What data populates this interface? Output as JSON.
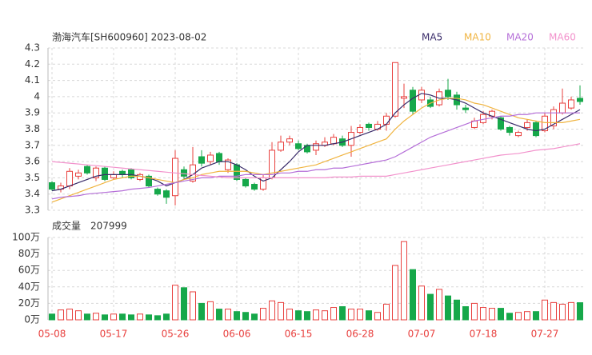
{
  "chart_data": {
    "type": "candlestick",
    "title": "渤海汽车[SH600960] 2023-08-02",
    "categories": [
      "05-08",
      null,
      null,
      null,
      null,
      null,
      null,
      "05-17",
      null,
      null,
      null,
      null,
      null,
      null,
      "05-26",
      null,
      null,
      null,
      null,
      null,
      null,
      "06-06",
      null,
      null,
      null,
      null,
      null,
      null,
      "06-15",
      null,
      null,
      null,
      null,
      null,
      null,
      "06-28",
      null,
      null,
      null,
      null,
      null,
      null,
      "07-07",
      null,
      null,
      null,
      null,
      null,
      null,
      "07-18",
      null,
      null,
      null,
      null,
      null,
      null,
      "07-27",
      null,
      null,
      null,
      null
    ],
    "open": [
      3.47,
      3.43,
      3.45,
      3.51,
      3.57,
      3.5,
      3.56,
      3.5,
      3.54,
      3.55,
      3.49,
      3.51,
      3.43,
      3.42,
      3.39,
      3.55,
      3.48,
      3.63,
      3.6,
      3.65,
      3.55,
      3.58,
      3.49,
      3.46,
      3.43,
      3.5,
      3.67,
      3.72,
      3.71,
      3.7,
      3.67,
      3.7,
      3.71,
      3.74,
      3.7,
      3.78,
      3.83,
      3.8,
      3.83,
      3.88,
      3.99,
      4.04,
      3.98,
      3.98,
      3.95,
      4.04,
      4.01,
      3.93,
      3.81,
      3.84,
      3.88,
      3.87,
      3.81,
      3.76,
      3.81,
      3.84,
      3.79,
      3.82,
      3.9,
      3.93,
      3.99
    ],
    "high": [
      3.48,
      3.47,
      3.56,
      3.55,
      3.58,
      3.57,
      3.57,
      3.54,
      3.55,
      3.56,
      3.53,
      3.52,
      3.44,
      3.43,
      3.67,
      3.57,
      3.69,
      3.67,
      3.66,
      3.66,
      3.62,
      3.59,
      3.5,
      3.47,
      3.52,
      3.72,
      3.76,
      3.76,
      3.73,
      3.71,
      3.73,
      3.75,
      3.77,
      3.76,
      3.82,
      3.83,
      3.84,
      3.85,
      3.9,
      4.21,
      4.08,
      4.06,
      4.06,
      4.0,
      4.05,
      4.11,
      4.03,
      3.95,
      3.87,
      3.91,
      3.92,
      3.88,
      3.82,
      3.79,
      3.86,
      3.85,
      3.9,
      3.94,
      4.05,
      4.0,
      4.07
    ],
    "low": [
      3.42,
      3.41,
      3.43,
      3.49,
      3.52,
      3.48,
      3.48,
      3.49,
      3.5,
      3.49,
      3.48,
      3.44,
      3.39,
      3.34,
      3.33,
      3.49,
      3.47,
      3.57,
      3.58,
      3.58,
      3.53,
      3.48,
      3.44,
      3.42,
      3.42,
      3.49,
      3.66,
      3.7,
      3.67,
      3.65,
      3.64,
      3.69,
      3.7,
      3.69,
      3.63,
      3.77,
      3.79,
      3.79,
      3.79,
      3.87,
      3.93,
      3.89,
      3.96,
      3.93,
      3.94,
      3.98,
      3.92,
      3.9,
      3.8,
      3.83,
      3.86,
      3.79,
      3.76,
      3.75,
      3.79,
      3.75,
      3.78,
      3.8,
      3.89,
      3.92,
      3.95
    ],
    "close": [
      3.43,
      3.45,
      3.54,
      3.53,
      3.53,
      3.56,
      3.49,
      3.52,
      3.52,
      3.5,
      3.52,
      3.45,
      3.4,
      3.38,
      3.62,
      3.51,
      3.58,
      3.59,
      3.64,
      3.6,
      3.61,
      3.49,
      3.45,
      3.43,
      3.5,
      3.67,
      3.72,
      3.74,
      3.68,
      3.66,
      3.71,
      3.72,
      3.75,
      3.7,
      3.78,
      3.81,
      3.81,
      3.83,
      3.88,
      4.21,
      4.0,
      3.91,
      4.04,
      3.94,
      4.03,
      4.0,
      3.95,
      3.92,
      3.85,
      3.89,
      3.91,
      3.8,
      3.78,
      3.78,
      3.84,
      3.76,
      3.88,
      3.92,
      3.96,
      3.98,
      3.97
    ],
    "up_color": "#e8403e",
    "down_color": "#16a84a",
    "ylim": [
      3.3,
      4.3
    ],
    "yticks": [
      3.3,
      3.4,
      3.5,
      3.6,
      3.7,
      3.8,
      3.9,
      4,
      4.1,
      4.2,
      4.3
    ],
    "grid": true,
    "ma": [
      {
        "name": "MA5",
        "color": "#3a2c6a",
        "values": [
          3.42,
          3.43,
          3.45,
          3.47,
          3.49,
          3.51,
          3.52,
          3.52,
          3.52,
          3.52,
          3.51,
          3.5,
          3.48,
          3.45,
          3.47,
          3.49,
          3.52,
          3.56,
          3.58,
          3.6,
          3.6,
          3.58,
          3.55,
          3.51,
          3.48,
          3.5,
          3.55,
          3.6,
          3.66,
          3.7,
          3.7,
          3.7,
          3.71,
          3.72,
          3.74,
          3.76,
          3.78,
          3.8,
          3.83,
          3.9,
          3.95,
          3.99,
          4.02,
          4.01,
          3.99,
          3.99,
          3.98,
          3.96,
          3.93,
          3.9,
          3.88,
          3.86,
          3.84,
          3.82,
          3.8,
          3.79,
          3.8,
          3.83,
          3.86,
          3.89,
          3.92
        ]
      },
      {
        "name": "MA10",
        "color": "#f0b440",
        "values": [
          3.35,
          3.37,
          3.39,
          3.41,
          3.43,
          3.45,
          3.47,
          3.49,
          3.5,
          3.51,
          3.51,
          3.5,
          3.49,
          3.48,
          3.47,
          3.49,
          3.5,
          3.52,
          3.53,
          3.54,
          3.54,
          3.54,
          3.54,
          3.53,
          3.52,
          3.53,
          3.54,
          3.55,
          3.56,
          3.57,
          3.58,
          3.6,
          3.62,
          3.64,
          3.66,
          3.68,
          3.7,
          3.72,
          3.74,
          3.8,
          3.85,
          3.89,
          3.93,
          3.96,
          3.98,
          3.99,
          3.99,
          3.98,
          3.96,
          3.95,
          3.93,
          3.91,
          3.89,
          3.87,
          3.86,
          3.85,
          3.84,
          3.84,
          3.84,
          3.85,
          3.86
        ]
      },
      {
        "name": "MA20",
        "color": "#b56fd8",
        "values": [
          3.37,
          3.38,
          3.385,
          3.39,
          3.4,
          3.405,
          3.41,
          3.415,
          3.42,
          3.43,
          3.435,
          3.44,
          3.45,
          3.46,
          3.47,
          3.48,
          3.49,
          3.5,
          3.5,
          3.51,
          3.51,
          3.51,
          3.52,
          3.52,
          3.52,
          3.52,
          3.53,
          3.53,
          3.54,
          3.54,
          3.55,
          3.55,
          3.56,
          3.56,
          3.57,
          3.58,
          3.59,
          3.6,
          3.61,
          3.63,
          3.66,
          3.69,
          3.72,
          3.75,
          3.77,
          3.79,
          3.81,
          3.83,
          3.85,
          3.86,
          3.87,
          3.88,
          3.88,
          3.89,
          3.89,
          3.9,
          3.9,
          3.9,
          3.9,
          3.9,
          3.9
        ]
      },
      {
        "name": "MA60",
        "color": "#f292cc",
        "values": [
          3.6,
          3.595,
          3.59,
          3.585,
          3.58,
          3.575,
          3.57,
          3.565,
          3.56,
          3.555,
          3.55,
          3.545,
          3.54,
          3.535,
          3.53,
          3.525,
          3.52,
          3.515,
          3.51,
          3.505,
          3.5,
          3.5,
          3.5,
          3.5,
          3.5,
          3.5,
          3.5,
          3.5,
          3.5,
          3.5,
          3.5,
          3.5,
          3.505,
          3.505,
          3.505,
          3.51,
          3.51,
          3.51,
          3.51,
          3.52,
          3.53,
          3.54,
          3.55,
          3.56,
          3.57,
          3.58,
          3.59,
          3.6,
          3.61,
          3.62,
          3.63,
          3.64,
          3.645,
          3.65,
          3.66,
          3.67,
          3.675,
          3.68,
          3.69,
          3.7,
          3.71
        ]
      }
    ],
    "volume": {
      "label": "成交量",
      "last": 207999,
      "values": [
        7,
        12,
        13,
        11,
        7,
        8,
        6,
        7,
        7,
        6,
        7,
        6,
        5,
        7,
        42,
        39,
        34,
        20,
        22,
        13,
        13,
        10,
        9,
        7,
        14,
        23,
        21,
        13,
        11,
        10,
        12,
        11,
        15,
        16,
        13,
        13,
        11,
        9,
        19,
        66,
        95,
        61,
        41,
        31,
        37,
        29,
        24,
        16,
        20,
        15,
        14,
        14,
        8,
        9,
        10,
        10,
        24,
        21,
        19,
        21,
        20.8
      ],
      "ylim": [
        0,
        100
      ],
      "yticks": [
        {
          "value": 0,
          "label": "0万"
        },
        {
          "value": 20,
          "label": "20万"
        },
        {
          "value": 40,
          "label": "40万"
        },
        {
          "value": 60,
          "label": "60万"
        },
        {
          "value": 80,
          "label": "80万"
        },
        {
          "value": 100,
          "label": "100万"
        }
      ]
    }
  }
}
